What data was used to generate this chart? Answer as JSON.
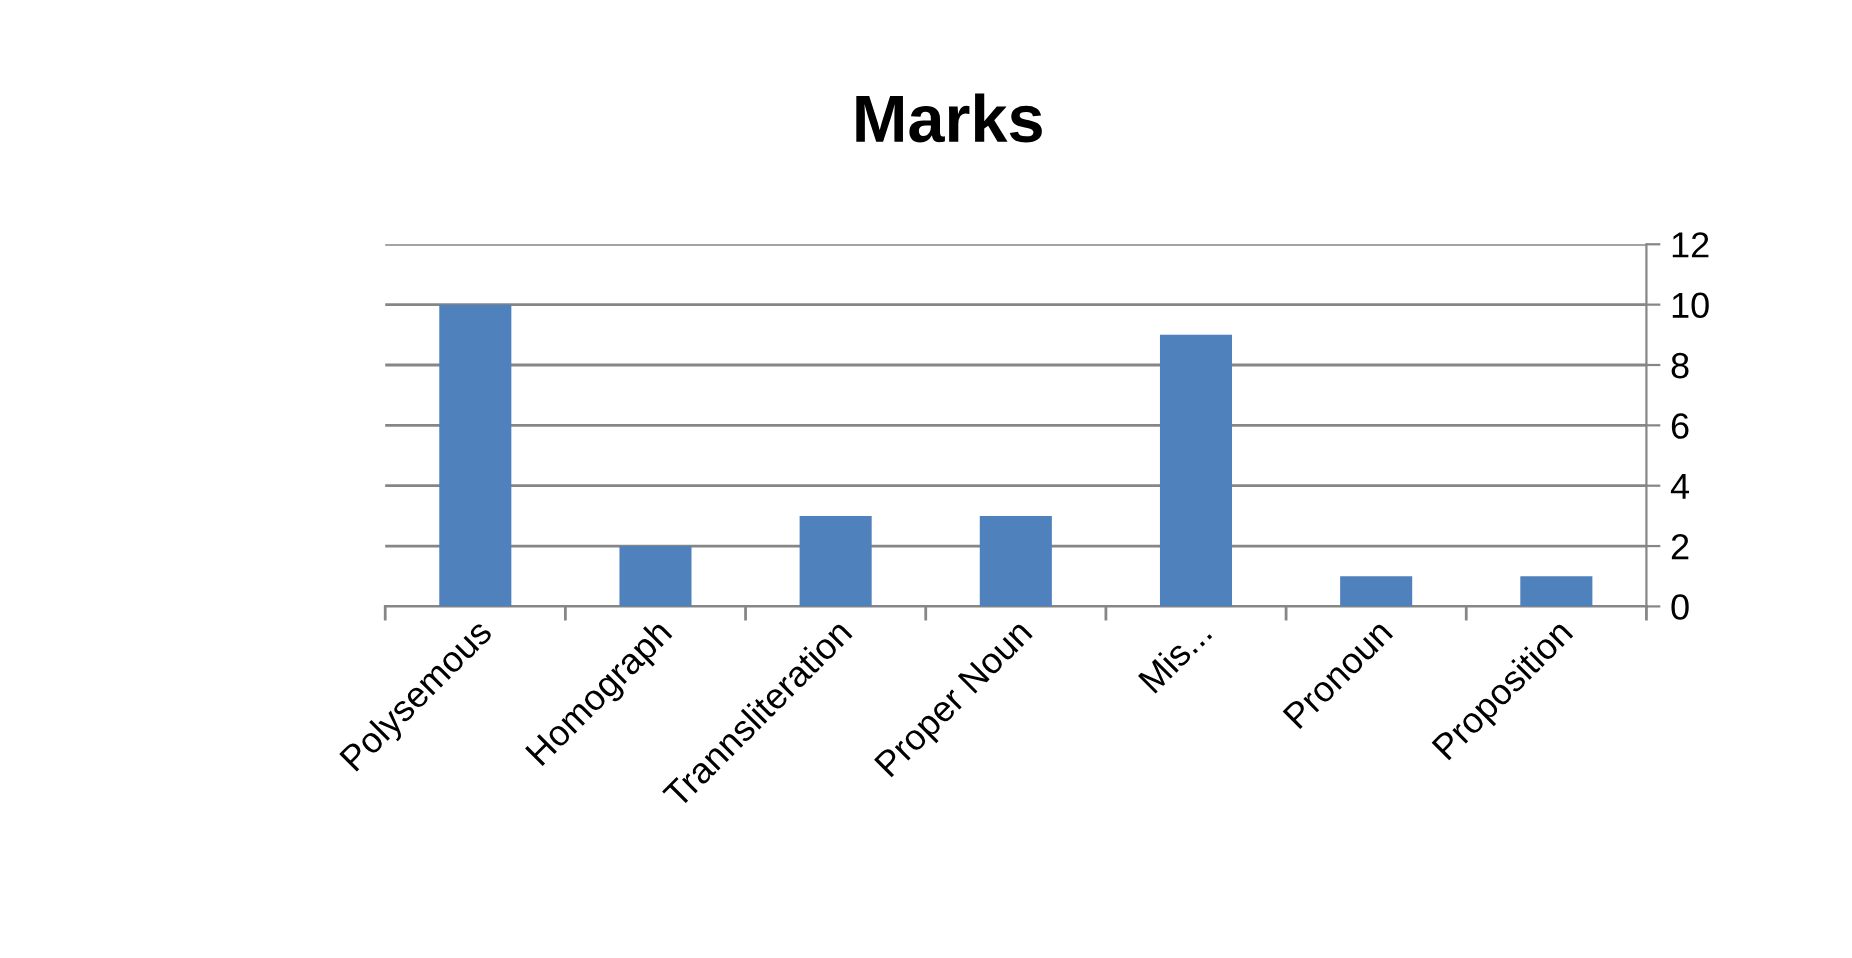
{
  "chart_data": {
    "type": "bar",
    "title": "Marks",
    "categories": [
      "Polysemous",
      "Homograph",
      "Trannsliteration",
      "Proper Noun",
      "Mis...",
      "Pronoun",
      "Proposition"
    ],
    "values": [
      10,
      2,
      3,
      3,
      9,
      1,
      1
    ],
    "color": "#4f81bd",
    "ylim": [
      0,
      12
    ],
    "yticks": [
      0,
      2,
      4,
      6,
      8,
      10,
      12
    ],
    "grid": "y",
    "legend": false
  }
}
